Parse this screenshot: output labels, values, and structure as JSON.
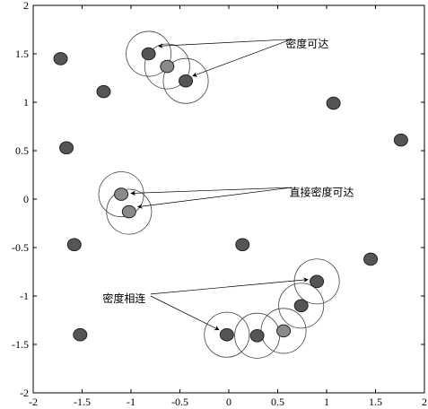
{
  "chart_data": {
    "type": "scatter",
    "title": "",
    "xlabel": "",
    "ylabel": "",
    "xlim": [
      -2,
      2
    ],
    "ylim": [
      -2,
      2
    ],
    "xticks": [
      -2,
      -1.5,
      -1,
      -0.5,
      0,
      0.5,
      1,
      1.5,
      2
    ],
    "yticks": [
      -2,
      -1.5,
      -1,
      -0.5,
      0,
      0.5,
      1,
      1.5,
      2
    ],
    "xtick_labels": [
      "-2",
      "-1.5",
      "-1",
      "-0.5",
      "0",
      "0.5",
      "1",
      "1.5",
      "2"
    ],
    "ytick_labels": [
      "-2",
      "-1.5",
      "-1",
      "-0.5",
      "0",
      "0.5",
      "1",
      "1.5",
      "2"
    ],
    "grid": false,
    "circle_radius": 0.23,
    "colors": {
      "dark_point": "#555555",
      "light_point": "#8a8a8a",
      "edge": "#222222",
      "circle": "#444444"
    },
    "points": [
      {
        "x": -1.72,
        "y": 1.45,
        "shade": "dark"
      },
      {
        "x": -1.28,
        "y": 1.11,
        "shade": "dark"
      },
      {
        "x": -1.66,
        "y": 0.53,
        "shade": "dark"
      },
      {
        "x": -1.58,
        "y": -0.47,
        "shade": "dark"
      },
      {
        "x": -1.52,
        "y": -1.4,
        "shade": "dark"
      },
      {
        "x": 1.07,
        "y": 0.99,
        "shade": "dark"
      },
      {
        "x": 1.76,
        "y": 0.61,
        "shade": "dark"
      },
      {
        "x": 0.14,
        "y": -0.47,
        "shade": "dark"
      },
      {
        "x": 1.45,
        "y": -0.62,
        "shade": "dark"
      },
      {
        "x": -0.82,
        "y": 1.5,
        "shade": "dark",
        "circle": true
      },
      {
        "x": -0.63,
        "y": 1.37,
        "shade": "light",
        "circle": true
      },
      {
        "x": -0.44,
        "y": 1.22,
        "shade": "dark",
        "circle": true
      },
      {
        "x": -1.1,
        "y": 0.05,
        "shade": "light",
        "circle": true
      },
      {
        "x": -1.02,
        "y": -0.13,
        "shade": "light",
        "circle": true
      },
      {
        "x": -0.02,
        "y": -1.4,
        "shade": "dark",
        "circle": true
      },
      {
        "x": 0.29,
        "y": -1.41,
        "shade": "dark",
        "circle": true
      },
      {
        "x": 0.56,
        "y": -1.36,
        "shade": "light",
        "circle": true
      },
      {
        "x": 0.74,
        "y": -1.1,
        "shade": "dark",
        "circle": true
      },
      {
        "x": 0.9,
        "y": -0.85,
        "shade": "dark",
        "circle": true
      }
    ],
    "annotations": [
      {
        "label": "密度可达",
        "text_pos": [
          0.8,
          1.6
        ],
        "anchor": "middle",
        "arrows": [
          {
            "from": [
              0.64,
              1.65
            ],
            "to": [
              -0.72,
              1.58
            ]
          },
          {
            "from": [
              0.64,
              1.65
            ],
            "to": [
              -0.37,
              1.27
            ]
          }
        ]
      },
      {
        "label": "直接密度可达",
        "text_pos": [
          0.95,
          0.07
        ],
        "anchor": "middle",
        "arrows": [
          {
            "from": [
              0.64,
              0.12
            ],
            "to": [
              -1.0,
              0.06
            ]
          },
          {
            "from": [
              0.64,
              0.12
            ],
            "to": [
              -0.93,
              -0.08
            ]
          }
        ]
      },
      {
        "label": "密度相连",
        "text_pos": [
          -1.07,
          -1.03
        ],
        "anchor": "middle",
        "arrows": [
          {
            "from": [
              -0.8,
              -0.98
            ],
            "to": [
              0.81,
              -0.83
            ]
          },
          {
            "from": [
              -0.8,
              -1.0
            ],
            "to": [
              -0.1,
              -1.35
            ]
          }
        ]
      }
    ]
  }
}
